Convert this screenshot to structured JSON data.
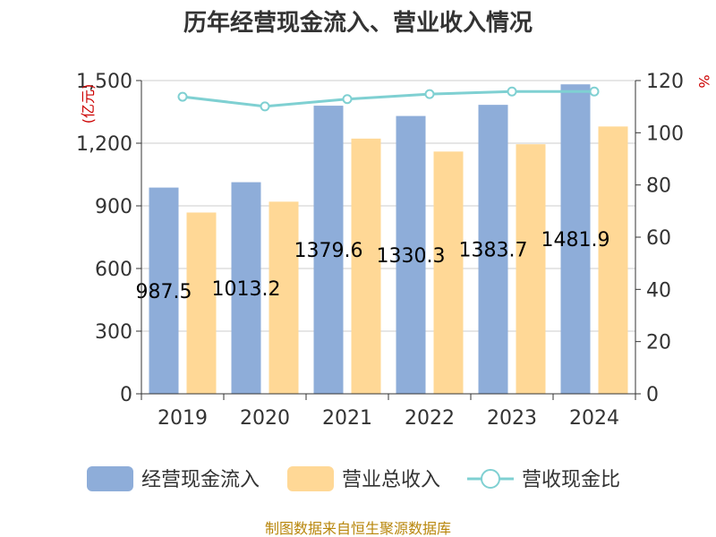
{
  "chart_data": {
    "type": "bar",
    "title": "历年经营现金流入、营业收入情况",
    "categories": [
      "2019",
      "2020",
      "2021",
      "2022",
      "2023",
      "2024"
    ],
    "series": [
      {
        "name": "经营现金流入",
        "values": [
          987.5,
          1013.2,
          1379.6,
          1330.3,
          1383.7,
          1481.9
        ],
        "color": "#8eadd9",
        "axis": "left"
      },
      {
        "name": "营业总收入",
        "values": [
          868,
          920,
          1222,
          1160,
          1195,
          1280
        ],
        "color": "#ffd896",
        "axis": "left"
      },
      {
        "name": "营收现金比",
        "type": "line",
        "values": [
          113.8,
          110.1,
          112.9,
          114.8,
          115.8,
          115.8
        ],
        "color": "#7fd0d2",
        "axis": "right"
      }
    ],
    "bar_labels": [
      "987.5",
      "1013.2",
      "1379.6",
      "1330.3",
      "1383.7",
      "1481.9"
    ],
    "y_left": {
      "label": "(亿元)",
      "ylim": [
        0,
        1500
      ],
      "ticks": [
        "0",
        "300",
        "600",
        "900",
        "1,200",
        "1,500"
      ]
    },
    "y_right": {
      "label": "%",
      "ylim": [
        0,
        120
      ],
      "ticks": [
        "0",
        "20",
        "40",
        "60",
        "80",
        "100",
        "120"
      ]
    },
    "legend_position": "bottom"
  },
  "source_note": "制图数据来自恒生聚源数据库"
}
